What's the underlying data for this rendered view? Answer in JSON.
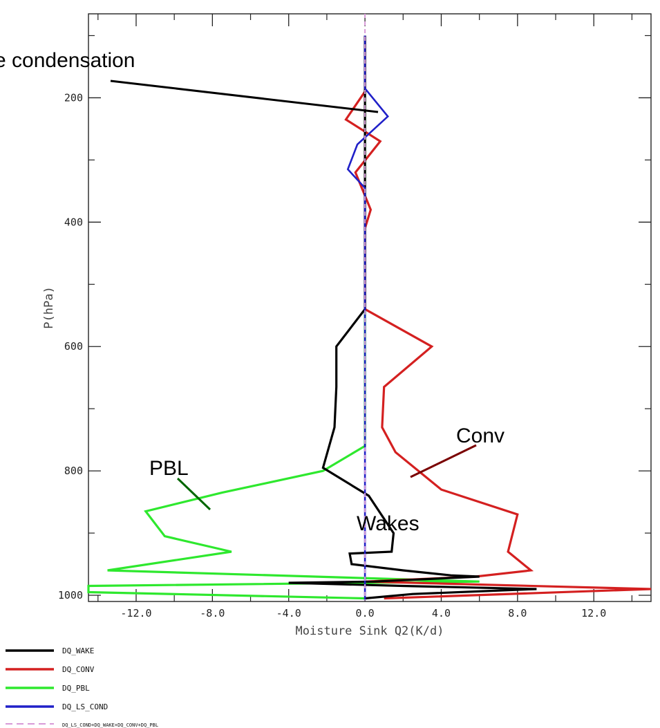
{
  "chart_data": {
    "type": "line",
    "xlabel": "Moisture Sink Q2(K/d)",
    "ylabel": "P(hPa)",
    "xlim": [
      -14.5,
      15.0
    ],
    "ylim": [
      1010,
      65
    ],
    "x_ticks": [
      -12.0,
      -8.0,
      -4.0,
      0.0,
      4.0,
      8.0,
      12.0
    ],
    "x_tick_labels": [
      "-12.0",
      "-8.0",
      "-4.0",
      "0.0",
      "4.0",
      "8.0",
      "12.0"
    ],
    "y_ticks": [
      200,
      400,
      600,
      800,
      1000
    ],
    "y_tick_labels": [
      "200",
      "400",
      "600",
      "800",
      "1000"
    ],
    "grid": false,
    "legend_placement": "bottom-left",
    "series": [
      {
        "name": "DQ_WAKE",
        "color": "#000000",
        "points": [
          [
            0,
            100
          ],
          [
            0,
            540
          ],
          [
            -1.5,
            600
          ],
          [
            -1.5,
            665
          ],
          [
            -1.6,
            730
          ],
          [
            -2.2,
            795
          ],
          [
            0.2,
            840
          ],
          [
            1.5,
            900
          ],
          [
            1.4,
            930
          ],
          [
            -0.8,
            933
          ],
          [
            -0.7,
            950
          ],
          [
            2,
            960
          ],
          [
            4.5,
            968
          ],
          [
            6,
            970
          ],
          [
            0.5,
            978
          ],
          [
            -4,
            980
          ],
          [
            2,
            985
          ],
          [
            9,
            990
          ],
          [
            2.5,
            998
          ],
          [
            0,
            1005
          ]
        ]
      },
      {
        "name": "DQ_CONV",
        "color": "#d42020",
        "points": [
          [
            0,
            100
          ],
          [
            0,
            190
          ],
          [
            -1,
            235
          ],
          [
            0.8,
            270
          ],
          [
            -0.5,
            320
          ],
          [
            0.3,
            380
          ],
          [
            0,
            410
          ],
          [
            0,
            540
          ],
          [
            3.5,
            600
          ],
          [
            1,
            665
          ],
          [
            0.9,
            730
          ],
          [
            1.6,
            770
          ],
          [
            4,
            830
          ],
          [
            8,
            870
          ],
          [
            7.5,
            930
          ],
          [
            8.7,
            960
          ],
          [
            5.8,
            970
          ],
          [
            0,
            978
          ],
          [
            15,
            990
          ],
          [
            1,
            1005
          ]
        ]
      },
      {
        "name": "DQ_PBL",
        "color": "#2ee82e",
        "points": [
          [
            0,
            100
          ],
          [
            0,
            760
          ],
          [
            -2.2,
            800
          ],
          [
            -7.5,
            835
          ],
          [
            -11.5,
            865
          ],
          [
            -10.5,
            905
          ],
          [
            -7,
            930
          ],
          [
            -13.5,
            960
          ],
          [
            6,
            978
          ],
          [
            -14.5,
            985
          ],
          [
            -14.5,
            995
          ],
          [
            0,
            1005
          ]
        ]
      },
      {
        "name": "DQ_LS_COND",
        "color": "#2020c8",
        "points": [
          [
            0,
            100
          ],
          [
            0,
            185
          ],
          [
            1.2,
            230
          ],
          [
            -0.4,
            275
          ],
          [
            -0.9,
            315
          ],
          [
            0,
            345
          ],
          [
            0,
            1008
          ]
        ]
      },
      {
        "name": "DQ_LS_COND+DQ_WAKE+DQ_CONV+DQ_PBL",
        "color": "#d89ad8",
        "dashed": true,
        "points": [
          [
            0,
            65
          ],
          [
            0,
            1008
          ]
        ]
      }
    ],
    "annotations": [
      {
        "text": "e condensation",
        "arrow_color": "#000000"
      },
      {
        "text": "Conv",
        "arrow_color": "#7a0000"
      },
      {
        "text": "PBL",
        "arrow_color": "#006600"
      },
      {
        "text": "Wakes",
        "arrow_color": "#000000"
      }
    ]
  }
}
